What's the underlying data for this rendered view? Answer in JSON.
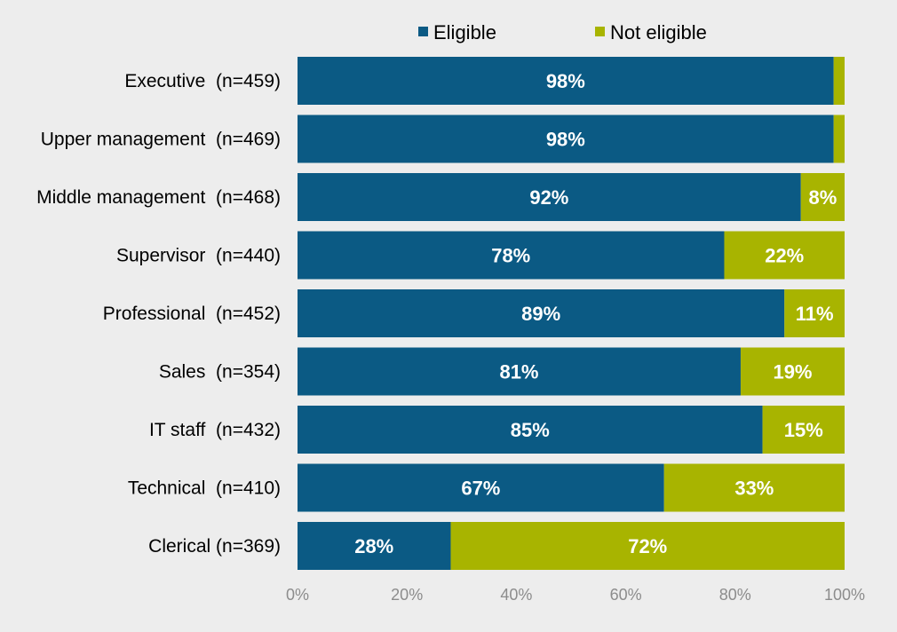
{
  "chart_data": {
    "type": "bar",
    "orientation": "horizontal",
    "stacked": true,
    "categories": [
      "Executive  (n=459)",
      "Upper management  (n=469)",
      "Middle management  (n=468)",
      "Supervisor  (n=440)",
      "Professional  (n=452)",
      "Sales  (n=354)",
      "IT staff  (n=432)",
      "Technical  (n=410)",
      "Clerical (n=369)"
    ],
    "series": [
      {
        "name": "Eligible",
        "color": "#0b5a84",
        "values": [
          98,
          98,
          92,
          78,
          89,
          81,
          85,
          67,
          28
        ],
        "labels": [
          "98%",
          "98%",
          "92%",
          "78%",
          "89%",
          "81%",
          "85%",
          "67%",
          "28%"
        ]
      },
      {
        "name": "Not eligible",
        "color": "#a8b400",
        "values": [
          2,
          2,
          8,
          22,
          11,
          19,
          15,
          33,
          72
        ],
        "labels": [
          "",
          "",
          "8%",
          "22%",
          "11%",
          "19%",
          "15%",
          "33%",
          "72%"
        ]
      }
    ],
    "xlim": [
      0,
      100
    ],
    "x_ticks": [
      "0%",
      "20%",
      "40%",
      "60%",
      "80%",
      "100%"
    ],
    "grid": false,
    "legend_position": "top",
    "title": "",
    "xlabel": "",
    "ylabel": ""
  }
}
